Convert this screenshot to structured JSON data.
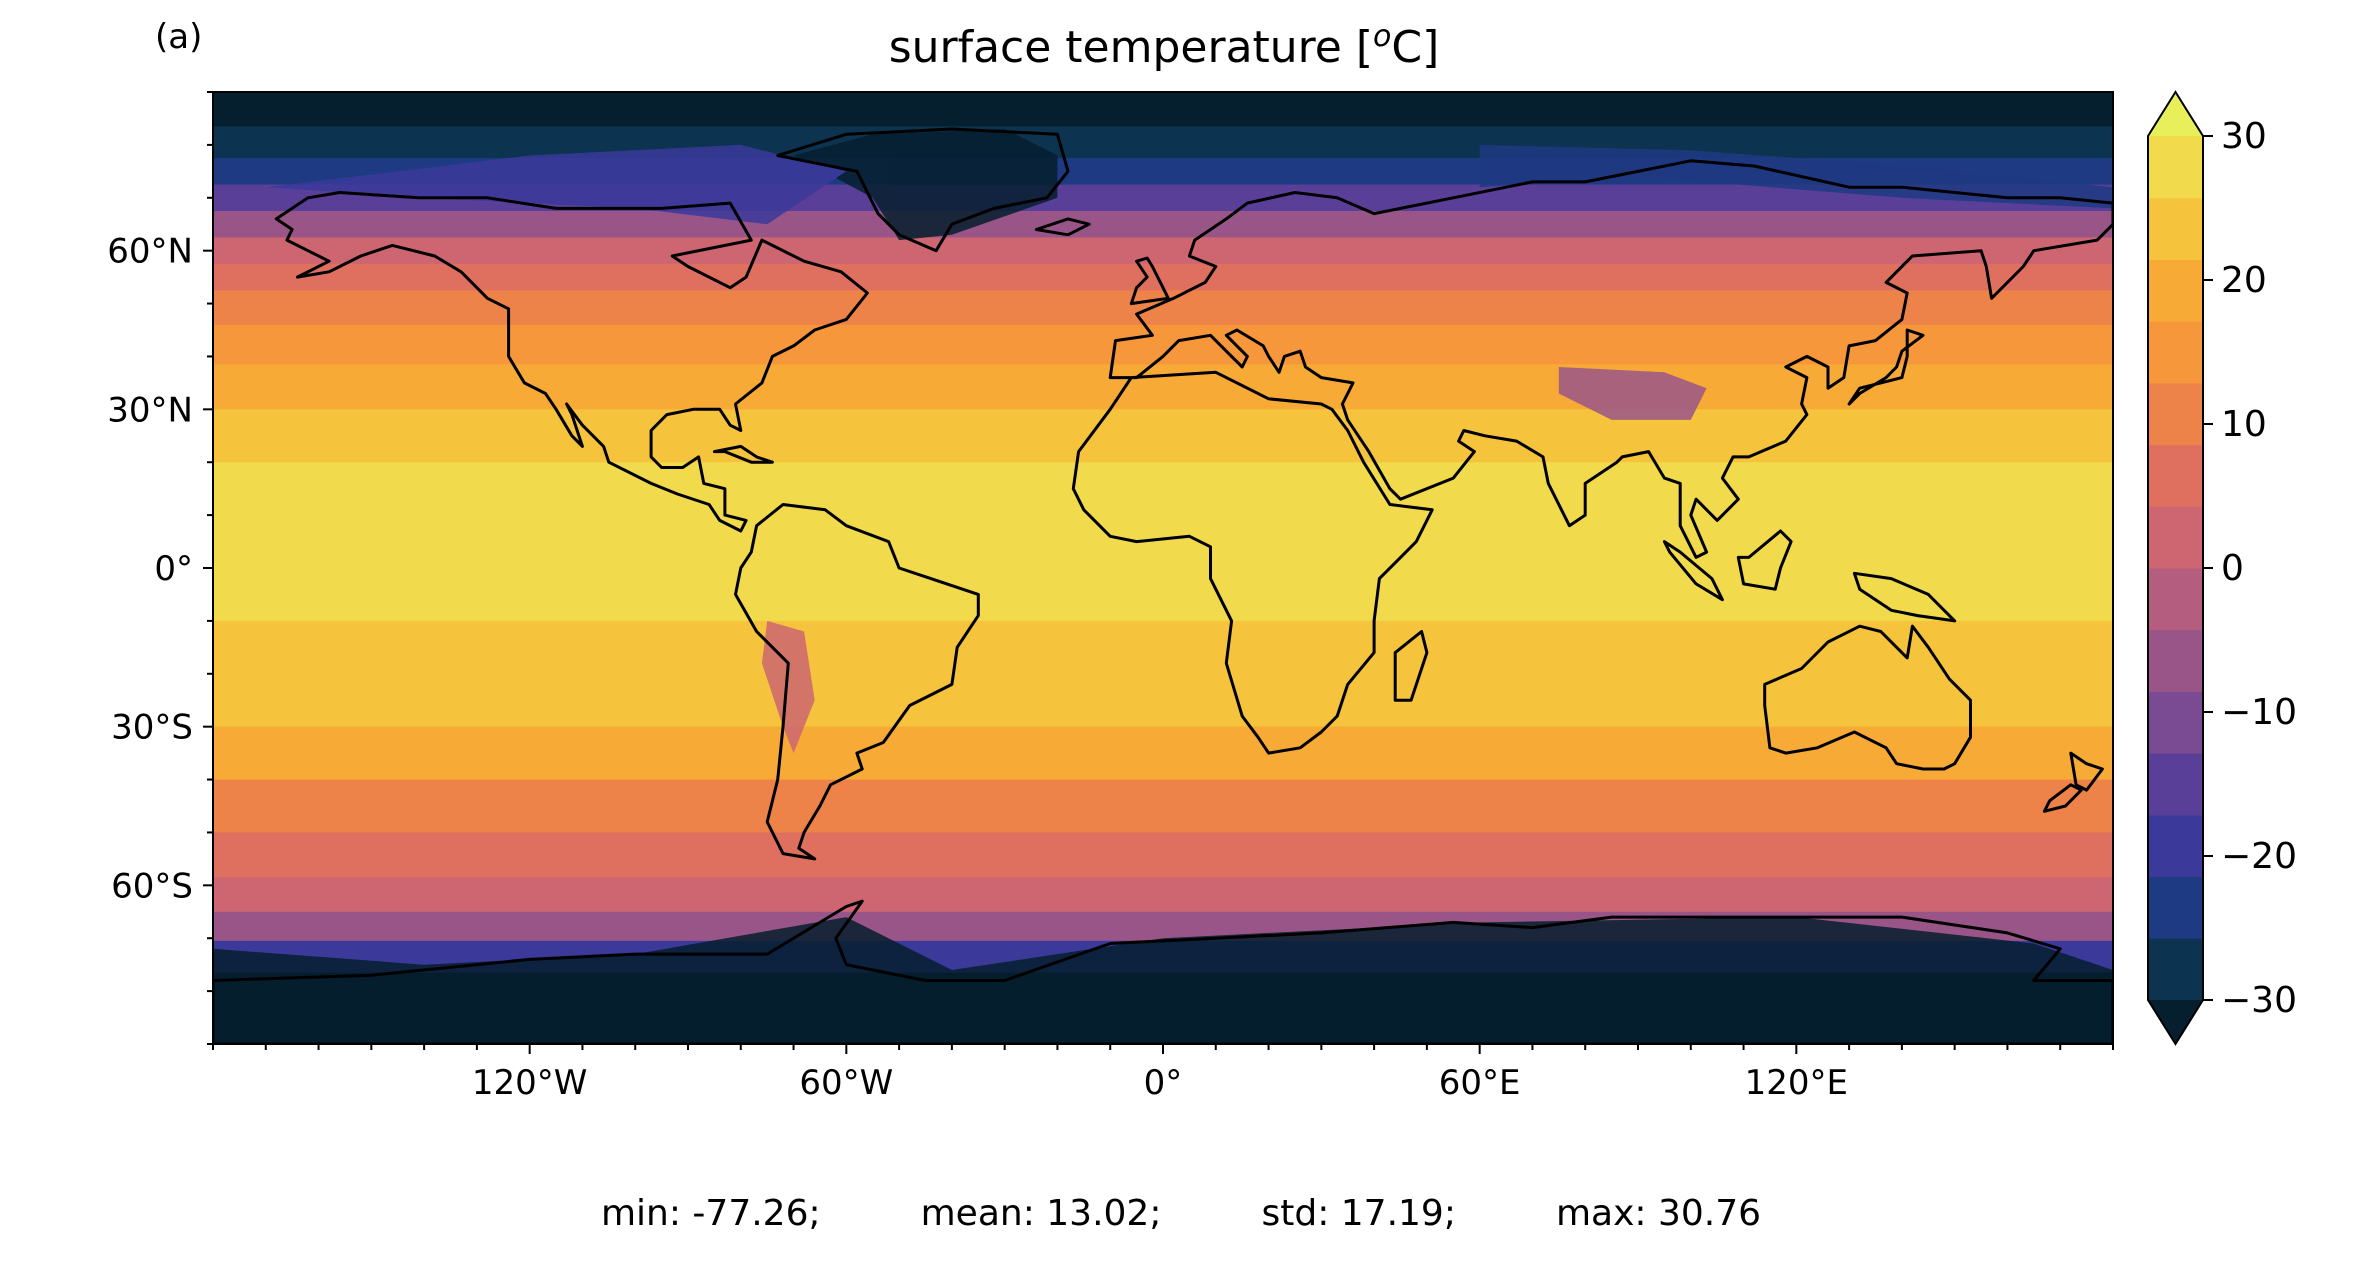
{
  "panel_label": "(a)",
  "title": "surface temperature [",
  "title_sup": "o",
  "title_end": "C]",
  "colors": {
    "levels": [
      "#051f2e",
      "#0c3350",
      "#1e3a82",
      "#3b3a9a",
      "#5a3f99",
      "#7a4b92",
      "#9a5588",
      "#b45d7e",
      "#cd6671",
      "#df7060",
      "#ee8349",
      "#f7973b",
      "#f7ab36",
      "#f6c33c",
      "#f1da4b",
      "#e7f05a"
    ],
    "outline": "#000000"
  },
  "stats": {
    "min": "min: -77.26;",
    "mean": "mean: 13.02;",
    "std": "std: 17.19;",
    "max": "max: 30.76"
  },
  "chart_data": {
    "type": "heatmap",
    "projection": "PlateCarree",
    "variable": "surface temperature",
    "units": "oC",
    "lon_range": [
      -180,
      180
    ],
    "lat_range": [
      -90,
      90
    ],
    "x_tick_values": [
      -120,
      -60,
      0,
      60,
      120
    ],
    "x_tick_labels": [
      "120°W",
      "60°W",
      "0°",
      "60°E",
      "120°E"
    ],
    "y_tick_values": [
      60,
      30,
      0,
      -30,
      -60
    ],
    "y_tick_labels": [
      "60°N",
      "30°N",
      "0°",
      "30°S",
      "60°S"
    ],
    "colorbar": {
      "ticks": [
        30,
        20,
        10,
        0,
        -10,
        -20,
        -30
      ],
      "tick_labels": [
        "30",
        "20",
        "10",
        "0",
        "−10",
        "−20",
        "−30"
      ],
      "range": [
        -30,
        30
      ],
      "extend": "both",
      "levels": 15
    },
    "zonal_band_temperature_C": [
      {
        "lat": 87,
        "value": -35
      },
      {
        "lat": 80,
        "value": -30
      },
      {
        "lat": 75,
        "value": -22
      },
      {
        "lat": 70,
        "value": -16
      },
      {
        "lat": 65,
        "value": -8
      },
      {
        "lat": 60,
        "value": 2
      },
      {
        "lat": 55,
        "value": 7
      },
      {
        "lat": 50,
        "value": 11
      },
      {
        "lat": 42,
        "value": 16
      },
      {
        "lat": 35,
        "value": 20
      },
      {
        "lat": 25,
        "value": 24
      },
      {
        "lat": 15,
        "value": 27
      },
      {
        "lat": 5,
        "value": 28
      },
      {
        "lat": -5,
        "value": 27
      },
      {
        "lat": -15,
        "value": 25
      },
      {
        "lat": -25,
        "value": 22
      },
      {
        "lat": -35,
        "value": 18
      },
      {
        "lat": -45,
        "value": 12
      },
      {
        "lat": -55,
        "value": 6
      },
      {
        "lat": -62,
        "value": 2
      },
      {
        "lat": -68,
        "value": -6
      },
      {
        "lat": -73,
        "value": -18
      },
      {
        "lat": -80,
        "value": -32
      },
      {
        "lat": -87,
        "value": -40
      }
    ],
    "min": -77.26,
    "mean": 13.02,
    "std": 17.19,
    "max": 30.76
  }
}
